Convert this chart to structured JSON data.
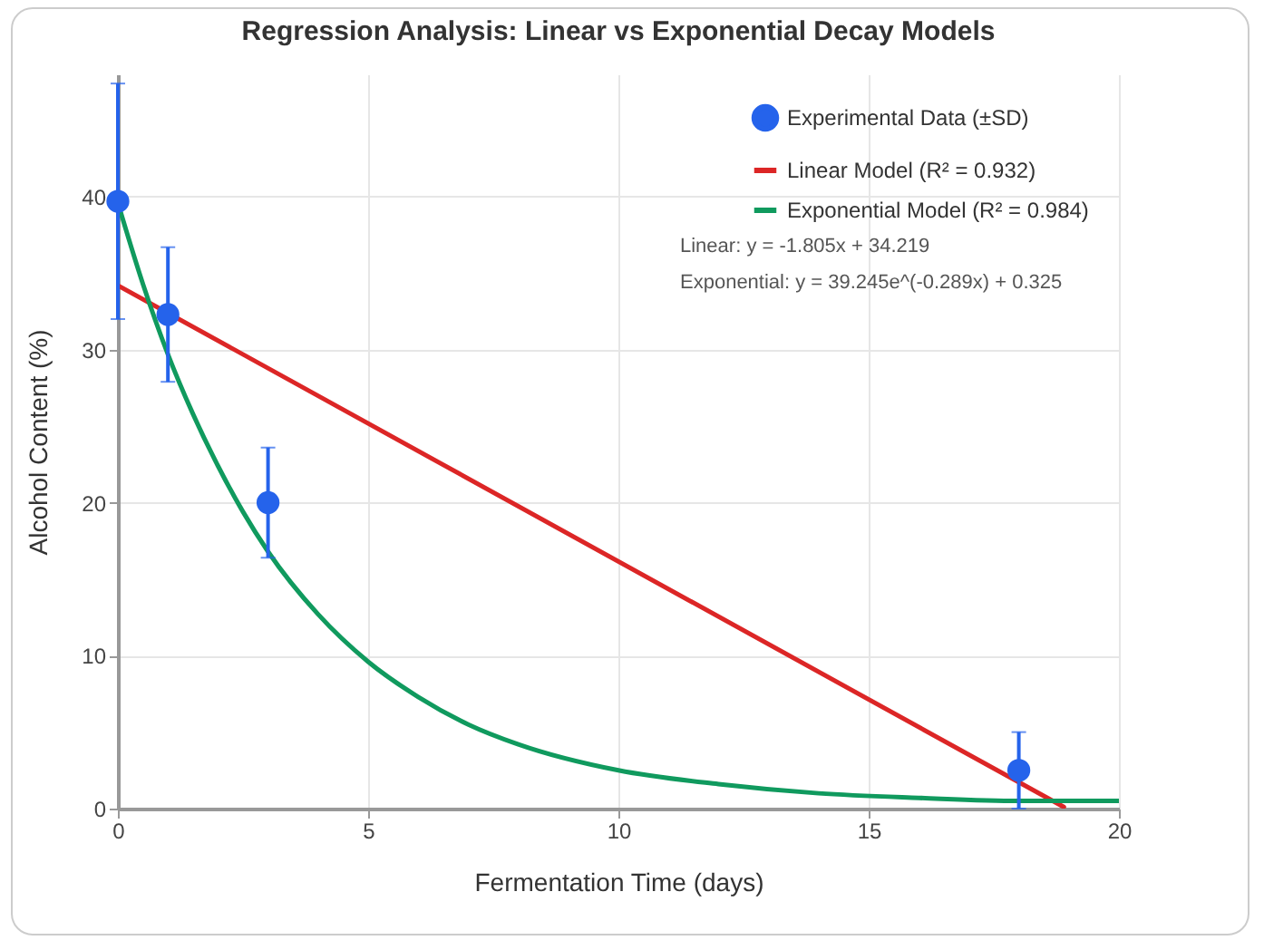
{
  "chart_data": {
    "type": "scatter",
    "title": "Regression Analysis: Linear vs Exponential Decay Models",
    "xlabel": "Fermentation Time (days)",
    "ylabel": "Alcohol Content (%)",
    "xlim": [
      0,
      20
    ],
    "xticks": [
      0,
      5,
      10,
      15,
      20
    ],
    "ylim": [
      0,
      48
    ],
    "yticks": [
      0,
      10,
      20,
      30,
      40
    ],
    "grid": true,
    "legend": "top right",
    "annotations": [
      "Linear: y = -1.805x + 34.219",
      "Exponential: y = 39.245e^(-0.289x) + 0.325"
    ],
    "series": [
      {
        "name": "Experimental Data (±SD)",
        "marker": "circle",
        "color": "#2563eb",
        "x": [
          0,
          1,
          3,
          18
        ],
        "values": [
          39.7,
          32.3,
          20.0,
          2.5
        ],
        "errors": [
          7.7,
          4.4,
          3.6,
          2.5
        ]
      },
      {
        "name": "Linear Model (R² = 0.932)",
        "type": "line",
        "color": "#dc2626",
        "x": [
          0,
          18.9
        ],
        "values": [
          34.2,
          0.1
        ]
      },
      {
        "name": "Exponential Model (R² = 0.984)",
        "type": "line",
        "color": "#109a5e",
        "x": [
          0,
          0.5,
          1,
          1.5,
          2,
          2.5,
          3,
          4,
          5,
          6,
          7,
          8,
          10,
          12,
          14,
          16,
          18,
          20
        ],
        "values": [
          39.6,
          34.3,
          29.7,
          25.8,
          22.4,
          19.4,
          16.8,
          12.7,
          9.6,
          7.3,
          5.5,
          4.2,
          2.5,
          1.6,
          1.0,
          0.7,
          0.5,
          0.5
        ]
      }
    ]
  }
}
